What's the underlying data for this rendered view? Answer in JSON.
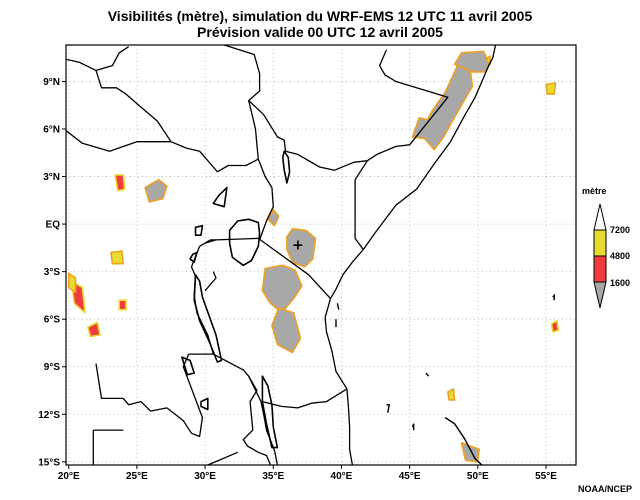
{
  "header": {
    "title_line1": "Visibilités (mètre), simulation du WRF-EMS 12 UTC 11 avril 2005",
    "title_line2": "Prévision valide 00 UTC 12 avril 2005"
  },
  "axes": {
    "lon_ticks": [
      {
        "value": 20,
        "label": "20°E"
      },
      {
        "value": 25,
        "label": "25°E"
      },
      {
        "value": 30,
        "label": "30°E"
      },
      {
        "value": 35,
        "label": "35°E"
      },
      {
        "value": 40,
        "label": "40°E"
      },
      {
        "value": 45,
        "label": "45°E"
      },
      {
        "value": 50,
        "label": "50°E"
      },
      {
        "value": 55,
        "label": "55°E"
      }
    ],
    "lat_ticks": [
      {
        "value": 9,
        "label": "9°N"
      },
      {
        "value": 6,
        "label": "6°N"
      },
      {
        "value": 3,
        "label": "3°N"
      },
      {
        "value": 0,
        "label": "EQ"
      },
      {
        "value": -3,
        "label": "3°S"
      },
      {
        "value": -6,
        "label": "6°S"
      },
      {
        "value": -9,
        "label": "9°S"
      },
      {
        "value": -12,
        "label": "12°S"
      },
      {
        "value": -15,
        "label": "15°S"
      }
    ],
    "lon_range": [
      19.8,
      57.2
    ],
    "lat_range": [
      -15.2,
      11.3
    ],
    "grid": true
  },
  "legend": {
    "title": "mètre",
    "placement": "right",
    "levels": [
      {
        "value": "7200",
        "color": "#e8dc30"
      },
      {
        "value": "4800",
        "color": "#f03c3c"
      },
      {
        "value": "1600",
        "color": "#a8a8a8"
      }
    ]
  },
  "credit": "NOAA/NCEP",
  "colors": {
    "gray": "#a8a8a8",
    "red": "#f03c3c",
    "yellow": "#e8dc30",
    "orange": "#f0a020"
  },
  "marker": {
    "lon": 36.8,
    "lat": -1.3,
    "symbol": "+"
  },
  "regions": [
    {
      "type": "gray",
      "points": [
        [
          45.2,
          5.5
        ],
        [
          45.7,
          6.7
        ],
        [
          46.3,
          6.6
        ],
        [
          46.7,
          7.2
        ],
        [
          47.6,
          8.3
        ],
        [
          48.3,
          9.6
        ],
        [
          48.6,
          10.2
        ],
        [
          49.4,
          10.1
        ],
        [
          49.6,
          8.7
        ],
        [
          49.0,
          7.8
        ],
        [
          48.2,
          6.6
        ],
        [
          47.5,
          5.5
        ],
        [
          46.8,
          4.7
        ],
        [
          46.1,
          5.4
        ]
      ]
    },
    {
      "type": "gray",
      "points": [
        [
          48.3,
          10.1
        ],
        [
          48.8,
          10.8
        ],
        [
          50.4,
          10.9
        ],
        [
          50.9,
          10.1
        ],
        [
          50.5,
          9.6
        ],
        [
          49.6,
          9.6
        ]
      ]
    },
    {
      "type": "gray",
      "points": [
        [
          36.0,
          -0.8
        ],
        [
          36.4,
          -0.3
        ],
        [
          37.4,
          -0.4
        ],
        [
          38.1,
          -0.9
        ],
        [
          37.9,
          -2.2
        ],
        [
          37.3,
          -2.7
        ],
        [
          36.4,
          -2.4
        ],
        [
          36.0,
          -1.6
        ]
      ]
    },
    {
      "type": "gray",
      "points": [
        [
          34.4,
          -2.8
        ],
        [
          35.7,
          -2.6
        ],
        [
          36.6,
          -2.9
        ],
        [
          37.1,
          -3.9
        ],
        [
          36.5,
          -4.7
        ],
        [
          35.6,
          -5.6
        ],
        [
          34.8,
          -5.0
        ],
        [
          34.2,
          -4.2
        ]
      ]
    },
    {
      "type": "gray",
      "points": [
        [
          35.4,
          -5.3
        ],
        [
          36.5,
          -5.6
        ],
        [
          37.0,
          -7.2
        ],
        [
          36.4,
          -8.1
        ],
        [
          35.3,
          -7.6
        ],
        [
          34.9,
          -6.4
        ]
      ]
    },
    {
      "type": "gray",
      "points": [
        [
          25.6,
          2.3
        ],
        [
          26.6,
          2.8
        ],
        [
          27.2,
          2.4
        ],
        [
          26.9,
          1.6
        ],
        [
          25.9,
          1.4
        ]
      ]
    },
    {
      "type": "gray",
      "points": [
        [
          34.6,
          0.3
        ],
        [
          35.0,
          0.9
        ],
        [
          35.4,
          0.5
        ],
        [
          35.1,
          -0.1
        ]
      ]
    },
    {
      "type": "gray",
      "points": [
        [
          48.8,
          -13.8
        ],
        [
          50.1,
          -14.2
        ],
        [
          50.0,
          -15.0
        ],
        [
          49.1,
          -14.9
        ]
      ]
    },
    {
      "type": "red",
      "points": [
        [
          23.4,
          3.1
        ],
        [
          24.0,
          3.1
        ],
        [
          24.1,
          2.2
        ],
        [
          23.6,
          2.1
        ]
      ]
    },
    {
      "type": "red",
      "points": [
        [
          20.2,
          -3.6
        ],
        [
          21.0,
          -4.0
        ],
        [
          21.2,
          -5.6
        ],
        [
          20.4,
          -5.0
        ]
      ]
    },
    {
      "type": "red",
      "points": [
        [
          21.4,
          -6.5
        ],
        [
          22.1,
          -6.2
        ],
        [
          22.3,
          -7.0
        ],
        [
          21.6,
          -7.1
        ]
      ]
    },
    {
      "type": "red",
      "points": [
        [
          23.7,
          -4.8
        ],
        [
          24.2,
          -4.8
        ],
        [
          24.2,
          -5.4
        ],
        [
          23.7,
          -5.4
        ]
      ]
    },
    {
      "type": "red",
      "points": [
        [
          55.4,
          -6.3
        ],
        [
          55.8,
          -6.1
        ],
        [
          55.9,
          -6.7
        ],
        [
          55.5,
          -6.8
        ]
      ]
    },
    {
      "type": "yellow",
      "points": [
        [
          20.0,
          -3.1
        ],
        [
          20.5,
          -3.4
        ],
        [
          20.5,
          -4.3
        ],
        [
          20.0,
          -4.0
        ]
      ]
    },
    {
      "type": "yellow",
      "points": [
        [
          23.1,
          -1.8
        ],
        [
          23.9,
          -1.7
        ],
        [
          24.0,
          -2.5
        ],
        [
          23.2,
          -2.5
        ]
      ]
    },
    {
      "type": "yellow",
      "points": [
        [
          55.0,
          8.8
        ],
        [
          55.7,
          8.9
        ],
        [
          55.6,
          8.2
        ],
        [
          55.1,
          8.2
        ]
      ]
    },
    {
      "type": "yellow",
      "points": [
        [
          50.6,
          10.4
        ],
        [
          50.9,
          10.6
        ],
        [
          50.9,
          10.1
        ]
      ]
    },
    {
      "type": "yellow",
      "points": [
        [
          47.8,
          -10.6
        ],
        [
          48.2,
          -10.4
        ],
        [
          48.3,
          -11.1
        ],
        [
          47.9,
          -11.1
        ]
      ]
    }
  ],
  "boundaries": [
    [
      [
        19.8,
        10.4
      ],
      [
        20.8,
        10.2
      ],
      [
        22.0,
        9.7
      ],
      [
        23.2,
        10.0
      ],
      [
        23.7,
        10.8
      ],
      [
        24.4,
        11.2
      ]
    ],
    [
      [
        22.0,
        9.7
      ],
      [
        22.4,
        8.6
      ],
      [
        23.5,
        8.6
      ],
      [
        24.2,
        8.2
      ],
      [
        25.0,
        7.6
      ],
      [
        26.5,
        6.5
      ],
      [
        27.5,
        5.2
      ],
      [
        28.6,
        4.8
      ],
      [
        29.6,
        4.6
      ],
      [
        30.6,
        3.6
      ],
      [
        30.9,
        3.3
      ]
    ],
    [
      [
        19.8,
        5.9
      ],
      [
        21.0,
        5.1
      ],
      [
        23.0,
        4.6
      ],
      [
        25.0,
        5.2
      ],
      [
        27.5,
        5.2
      ]
    ],
    [
      [
        31.4,
        11.3
      ],
      [
        32.5,
        11.0
      ],
      [
        33.6,
        10.7
      ],
      [
        34.0,
        9.5
      ],
      [
        34.0,
        8.4
      ],
      [
        33.2,
        7.8
      ],
      [
        34.3,
        6.9
      ],
      [
        35.3,
        5.5
      ],
      [
        35.8,
        5.3
      ],
      [
        35.9,
        4.6
      ]
    ],
    [
      [
        33.2,
        7.8
      ],
      [
        33.7,
        6.0
      ],
      [
        33.8,
        5.0
      ],
      [
        33.9,
        4.1
      ],
      [
        33.0,
        3.7
      ],
      [
        31.7,
        3.7
      ],
      [
        30.9,
        3.3
      ]
    ],
    [
      [
        35.9,
        4.6
      ],
      [
        36.8,
        4.4
      ],
      [
        38.4,
        3.6
      ],
      [
        39.5,
        3.4
      ],
      [
        40.9,
        3.9
      ],
      [
        41.9,
        4.0
      ]
    ],
    [
      [
        41.9,
        4.0
      ],
      [
        42.6,
        4.4
      ],
      [
        44.0,
        4.9
      ],
      [
        45.0,
        5.0
      ],
      [
        47.8,
        8.0
      ],
      [
        44.0,
        9.0
      ],
      [
        43.2,
        9.4
      ],
      [
        42.8,
        10.0
      ],
      [
        43.3,
        11.0
      ]
    ],
    [
      [
        33.9,
        4.1
      ],
      [
        34.4,
        3.0
      ],
      [
        34.9,
        2.3
      ],
      [
        35.0,
        1.1
      ],
      [
        34.5,
        0.2
      ],
      [
        34.0,
        -1.0
      ]
    ],
    [
      [
        41.9,
        4.0
      ],
      [
        41.0,
        2.8
      ],
      [
        41.0,
        -0.9
      ],
      [
        41.6,
        -1.6
      ]
    ],
    [
      [
        33.9,
        -0.9
      ],
      [
        37.6,
        -3.2
      ],
      [
        39.2,
        -4.7
      ]
    ],
    [
      [
        29.6,
        -1.4
      ],
      [
        30.4,
        -1.0
      ],
      [
        30.8,
        -1.0
      ],
      [
        33.9,
        -0.9
      ]
    ],
    [
      [
        29.6,
        -1.4
      ],
      [
        29.0,
        -2.7
      ],
      [
        29.3,
        -3.3
      ],
      [
        29.2,
        -4.5
      ],
      [
        29.4,
        -5.6
      ],
      [
        30.2,
        -7.0
      ],
      [
        30.6,
        -8.2
      ],
      [
        32.8,
        -9.2
      ],
      [
        33.2,
        -9.6
      ]
    ],
    [
      [
        33.2,
        -9.6
      ],
      [
        33.8,
        -10.5
      ],
      [
        33.3,
        -11.2
      ],
      [
        33.5,
        -13.0
      ],
      [
        32.8,
        -13.6
      ],
      [
        33.1,
        -14.0
      ],
      [
        33.9,
        -14.4
      ],
      [
        34.5,
        -14.6
      ],
      [
        34.8,
        -15.2
      ]
    ],
    [
      [
        33.2,
        -9.6
      ],
      [
        34.1,
        -11.2
      ],
      [
        34.3,
        -12.0
      ],
      [
        34.5,
        -13.0
      ],
      [
        35.1,
        -14.3
      ],
      [
        35.3,
        -15.2
      ]
    ],
    [
      [
        34.2,
        -11.2
      ],
      [
        35.6,
        -11.5
      ],
      [
        36.8,
        -11.6
      ],
      [
        37.8,
        -11.3
      ],
      [
        38.9,
        -11.2
      ],
      [
        40.4,
        -10.4
      ]
    ],
    [
      [
        22.0,
        -8.8
      ],
      [
        22.4,
        -11.0
      ],
      [
        24.0,
        -11.0
      ],
      [
        24.4,
        -11.4
      ],
      [
        25.3,
        -11.2
      ],
      [
        26.0,
        -11.8
      ],
      [
        27.2,
        -11.6
      ],
      [
        28.4,
        -12.4
      ],
      [
        29.0,
        -13.2
      ],
      [
        29.6,
        -13.4
      ],
      [
        29.8,
        -12.2
      ],
      [
        28.4,
        -9.0
      ],
      [
        28.8,
        -8.2
      ],
      [
        30.6,
        -8.2
      ]
    ],
    [
      [
        21.8,
        -13.0
      ],
      [
        21.8,
        -15.2
      ]
    ],
    [
      [
        21.8,
        -13.0
      ],
      [
        24.0,
        -13.0
      ]
    ],
    [
      [
        32.4,
        -14.4
      ],
      [
        30.2,
        -15.2
      ]
    ],
    [
      [
        30.6,
        -3.0
      ],
      [
        30.8,
        -3.4
      ],
      [
        30.0,
        -4.2
      ]
    ],
    [
      [
        30.8,
        -1.0
      ],
      [
        30.0,
        -1.2
      ]
    ]
  ],
  "coastlines": [
    [
      [
        51.3,
        11.3
      ],
      [
        51.1,
        10.5
      ],
      [
        50.8,
        10.0
      ],
      [
        50.4,
        9.2
      ],
      [
        49.8,
        8.0
      ],
      [
        49.0,
        6.8
      ],
      [
        48.0,
        5.2
      ],
      [
        46.8,
        3.8
      ],
      [
        45.5,
        2.2
      ],
      [
        44.0,
        1.2
      ],
      [
        42.6,
        -0.4
      ],
      [
        41.6,
        -1.6
      ],
      [
        40.8,
        -2.4
      ],
      [
        40.1,
        -3.2
      ],
      [
        39.6,
        -4.1
      ],
      [
        39.2,
        -4.7
      ],
      [
        38.8,
        -5.9
      ],
      [
        38.9,
        -6.8
      ],
      [
        39.3,
        -8.0
      ],
      [
        39.6,
        -9.3
      ],
      [
        40.4,
        -10.4
      ],
      [
        40.5,
        -11.4
      ],
      [
        40.6,
        -12.8
      ],
      [
        40.6,
        -14.2
      ],
      [
        40.8,
        -15.2
      ]
    ]
  ],
  "lakes": [
    [
      [
        32.4,
        0.2
      ],
      [
        33.2,
        0.3
      ],
      [
        33.9,
        0.1
      ],
      [
        34.0,
        -0.6
      ],
      [
        33.9,
        -1.4
      ],
      [
        33.4,
        -2.3
      ],
      [
        32.8,
        -2.6
      ],
      [
        32.0,
        -2.1
      ],
      [
        31.8,
        -1.2
      ],
      [
        31.8,
        -0.4
      ]
    ],
    [
      [
        35.8,
        4.6
      ],
      [
        36.1,
        4.2
      ],
      [
        36.2,
        3.3
      ],
      [
        36.0,
        2.6
      ],
      [
        35.8,
        3.4
      ],
      [
        35.7,
        4.2
      ]
    ],
    [
      [
        29.3,
        -3.2
      ],
      [
        29.6,
        -3.6
      ],
      [
        29.8,
        -4.6
      ],
      [
        30.3,
        -5.8
      ],
      [
        30.8,
        -7.0
      ],
      [
        31.2,
        -8.6
      ],
      [
        30.9,
        -8.7
      ],
      [
        30.3,
        -7.4
      ],
      [
        29.6,
        -6.1
      ],
      [
        29.2,
        -4.8
      ]
    ],
    [
      [
        34.2,
        -9.6
      ],
      [
        34.6,
        -10.2
      ],
      [
        34.9,
        -11.4
      ],
      [
        35.0,
        -12.8
      ],
      [
        35.3,
        -14.1
      ],
      [
        34.9,
        -14.1
      ],
      [
        34.5,
        -12.6
      ],
      [
        34.2,
        -11.2
      ]
    ],
    [
      [
        31.0,
        1.8
      ],
      [
        31.6,
        2.3
      ],
      [
        31.4,
        1.1
      ],
      [
        30.6,
        1.3
      ]
    ],
    [
      [
        29.1,
        -1.9
      ],
      [
        29.4,
        -1.8
      ],
      [
        29.2,
        -2.4
      ],
      [
        28.9,
        -2.2
      ]
    ],
    [
      [
        29.3,
        -0.2
      ],
      [
        29.8,
        -0.1
      ],
      [
        29.7,
        -0.7
      ],
      [
        29.3,
        -0.7
      ]
    ],
    [
      [
        28.3,
        -8.4
      ],
      [
        28.9,
        -8.6
      ],
      [
        29.2,
        -9.4
      ],
      [
        28.7,
        -9.5
      ]
    ],
    [
      [
        29.7,
        -11.2
      ],
      [
        30.2,
        -11.0
      ],
      [
        30.2,
        -11.7
      ],
      [
        29.7,
        -11.5
      ]
    ]
  ],
  "islands": [
    [
      [
        47.6,
        -12.2
      ],
      [
        48.3,
        -12.6
      ],
      [
        49.0,
        -13.5
      ],
      [
        49.8,
        -14.8
      ],
      [
        50.3,
        -15.2
      ]
    ],
    [
      [
        45.2,
        -12.8
      ],
      [
        45.3,
        -12.6
      ],
      [
        45.3,
        -13.0
      ]
    ],
    [
      [
        43.3,
        -11.4
      ],
      [
        43.5,
        -11.4
      ],
      [
        43.4,
        -11.9
      ]
    ],
    [
      [
        55.5,
        -4.6
      ],
      [
        55.6,
        -4.5
      ],
      [
        55.6,
        -4.8
      ]
    ],
    [
      [
        39.6,
        -6.0
      ],
      [
        39.6,
        -6.5
      ]
    ],
    [
      [
        39.7,
        -5.0
      ],
      [
        39.8,
        -5.4
      ]
    ],
    [
      [
        46.2,
        -9.4
      ],
      [
        46.4,
        -9.6
      ]
    ]
  ]
}
